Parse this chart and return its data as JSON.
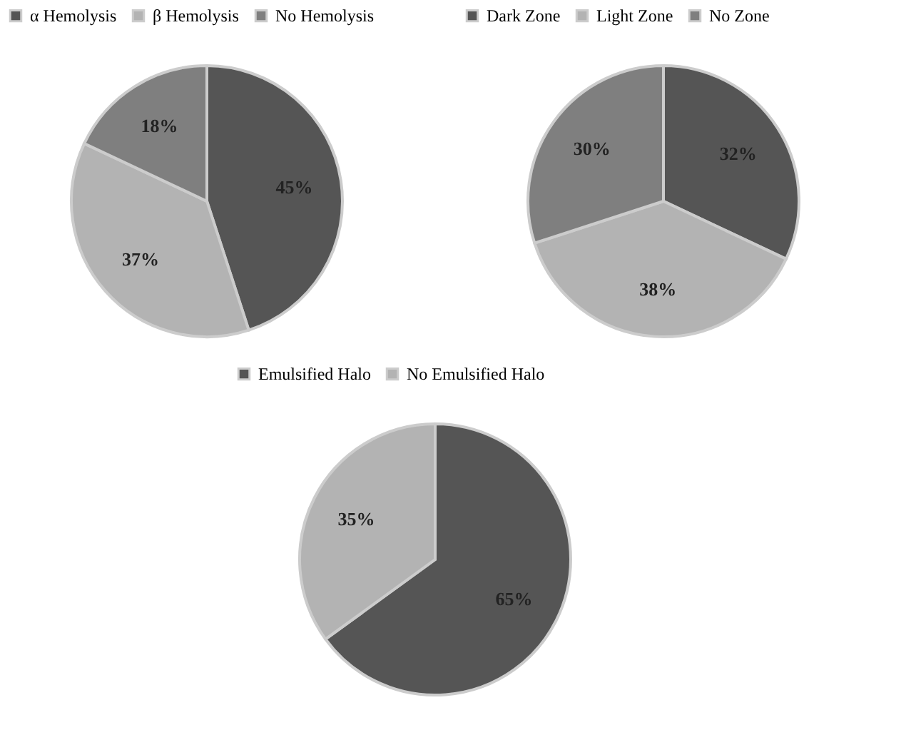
{
  "chart_data": [
    {
      "type": "pie",
      "categories": [
        "α Hemolysis",
        "β Hemolysis",
        "No Hemolysis"
      ],
      "values": [
        45,
        37,
        18
      ],
      "value_labels": [
        "45%",
        "37%",
        "18%"
      ],
      "colors": [
        "#555555",
        "#b3b3b3",
        "#7f7f7f"
      ],
      "legend": "top"
    },
    {
      "type": "pie",
      "categories": [
        "Dark Zone",
        "Light Zone",
        "No Zone"
      ],
      "values": [
        32,
        38,
        30
      ],
      "value_labels": [
        "32%",
        "38%",
        "30%"
      ],
      "colors": [
        "#555555",
        "#b3b3b3",
        "#7f7f7f"
      ],
      "legend": "top"
    },
    {
      "type": "pie",
      "categories": [
        "Emulsified Halo",
        "No Emulsified Halo"
      ],
      "values": [
        65,
        35
      ],
      "value_labels": [
        "65%",
        "35%"
      ],
      "colors": [
        "#555555",
        "#b3b3b3"
      ],
      "legend": "top"
    }
  ]
}
